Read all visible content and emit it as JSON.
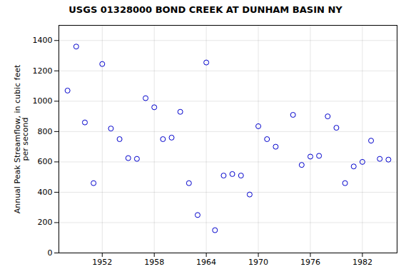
{
  "chart_data": {
    "type": "scatter",
    "title": "USGS 01328000 BOND CREEK AT DUNHAM BASIN NY",
    "ylabel": "Annual Peak Streamflow, in cubic feet\nper second",
    "x": [
      1948,
      1949,
      1950,
      1951,
      1952,
      1953,
      1954,
      1955,
      1956,
      1957,
      1958,
      1959,
      1960,
      1961,
      1962,
      1963,
      1964,
      1965,
      1966,
      1967,
      1968,
      1969,
      1970,
      1971,
      1972,
      1974,
      1975,
      1976,
      1977,
      1978,
      1979,
      1980,
      1981,
      1982,
      1983,
      1984,
      1985
    ],
    "values": [
      1070,
      1360,
      860,
      460,
      1245,
      820,
      750,
      625,
      620,
      1020,
      960,
      750,
      760,
      930,
      460,
      250,
      1255,
      150,
      510,
      520,
      510,
      385,
      835,
      750,
      700,
      910,
      580,
      635,
      640,
      900,
      825,
      460,
      570,
      600,
      740,
      620,
      615
    ],
    "color": "#0000cc",
    "marker": "circle",
    "xlim": [
      1947,
      1986
    ],
    "ylim": [
      0,
      1500
    ],
    "xticks": [
      1952,
      1958,
      1964,
      1970,
      1976,
      1982
    ],
    "yticks": [
      0,
      200,
      400,
      600,
      800,
      1000,
      1200,
      1400
    ],
    "grid": true
  }
}
